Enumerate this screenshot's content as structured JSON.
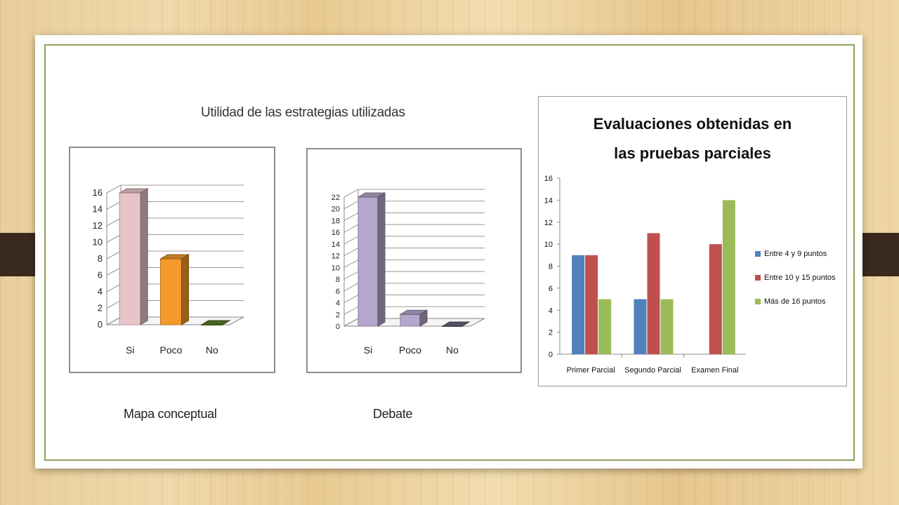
{
  "left_title": "Utilidad de las estrategias utilizadas",
  "captions": {
    "mapa": "Mapa conceptual",
    "debate": "Debate"
  },
  "colors": {
    "evaluaciones": [
      "#4f81bd",
      "#c0504d",
      "#9bbb59"
    ]
  },
  "chart_data": [
    {
      "type": "bar",
      "title": "",
      "caption": "Mapa conceptual",
      "categories": [
        "Si",
        "Poco",
        "No"
      ],
      "values": [
        16,
        8,
        0
      ],
      "colors": [
        "#e8c4c8",
        "#f39a2a",
        "#5a7d2a"
      ],
      "yticks": [
        0,
        2,
        4,
        6,
        8,
        10,
        12,
        14,
        16
      ],
      "ylim": [
        0,
        16
      ],
      "grid": true
    },
    {
      "type": "bar",
      "title": "",
      "caption": "Debate",
      "categories": [
        "Si",
        "Poco",
        "No"
      ],
      "values": [
        22,
        2,
        0
      ],
      "colors": [
        "#b4a6cc",
        "#b4a6cc",
        "#6b6280"
      ],
      "yticks": [
        0,
        2,
        4,
        6,
        8,
        10,
        12,
        14,
        16,
        18,
        20,
        22
      ],
      "ylim": [
        0,
        22
      ],
      "grid": true
    },
    {
      "type": "bar",
      "title": "Evaluaciones obtenidas en las pruebas parciales",
      "categories": [
        "Primer Parcial",
        "Segundo Parcial",
        "Examen Final"
      ],
      "series": [
        {
          "name": "Entre 4 y 9 puntos",
          "values": [
            9,
            5,
            0
          ]
        },
        {
          "name": "Entre 10 y 15 puntos",
          "values": [
            9,
            11,
            10
          ]
        },
        {
          "name": "Más de 16 puntos",
          "values": [
            5,
            5,
            14
          ]
        }
      ],
      "yticks": [
        0,
        2,
        4,
        6,
        8,
        10,
        12,
        14,
        16
      ],
      "ylim": [
        0,
        16
      ],
      "legend": "right"
    }
  ]
}
